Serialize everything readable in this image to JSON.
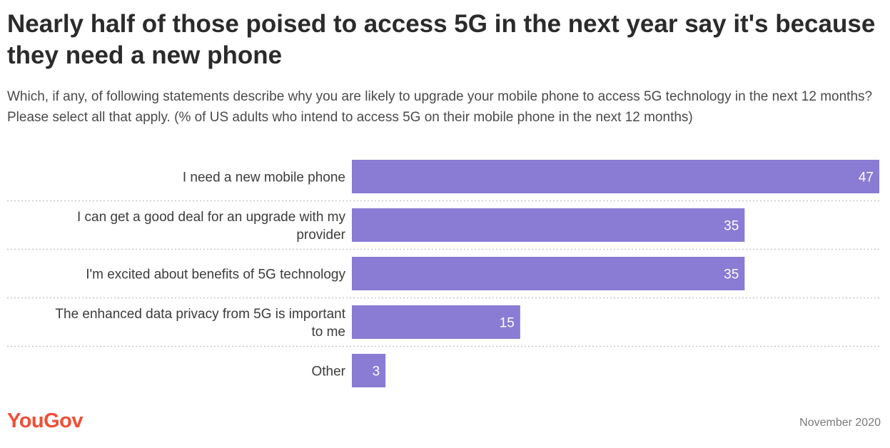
{
  "chart_data": {
    "type": "bar",
    "orientation": "horizontal",
    "title": "Nearly half of those poised to access 5G in the next year say it's because they need a new phone",
    "subtitle": "Which, if any, of following statements describe why you are likely to upgrade your mobile phone to access 5G technology in the next 12 months? Please select all that apply. (% of US adults who intend to access 5G on their mobile phone in the next 12 months)",
    "categories": [
      [
        "I need a new mobile phone"
      ],
      [
        "I can get a good deal for an upgrade with my",
        "provider"
      ],
      [
        "I'm excited about benefits of 5G technology"
      ],
      [
        "The enhanced data privacy from 5G is important",
        "to me"
      ],
      [
        "Other"
      ]
    ],
    "values": [
      47,
      35,
      35,
      15,
      3
    ],
    "value_unit": "%",
    "xlim": [
      0,
      47
    ],
    "bar_color": "#8a7bd4",
    "grid": false
  },
  "footer": {
    "brand": "YouGov",
    "brand_color": "#f04e37",
    "date": "November 2020"
  }
}
